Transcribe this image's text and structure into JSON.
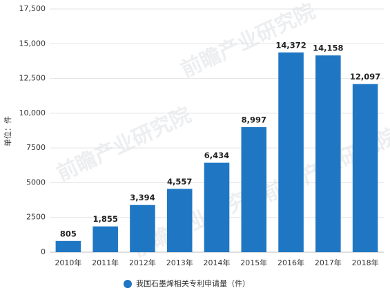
{
  "chart_data": {
    "type": "bar",
    "y_label": "单位：件",
    "legend_label": "我国石墨烯相关专利申请量（件）",
    "watermark": "前瞻产业研究院",
    "categories": [
      "2010年",
      "2011年",
      "2012年",
      "2013年",
      "2014年",
      "2015年",
      "2016年",
      "2017年",
      "2018年"
    ],
    "values": [
      805,
      1855,
      3394,
      4557,
      6434,
      8997,
      14372,
      14158,
      12097
    ],
    "value_labels": [
      "805",
      "1,855",
      "3,394",
      "4,557",
      "6,434",
      "8,997",
      "14,372",
      "14,158",
      "12,097"
    ],
    "color": "#1f77c4",
    "ylim": [
      0,
      17500
    ],
    "yticks": [
      0,
      2500,
      5000,
      7500,
      {
        "value": 10000,
        "label": "10,000"
      },
      {
        "value": 12500,
        "label": "12,500"
      },
      {
        "value": 15000,
        "label": "15,000"
      },
      {
        "value": 17500,
        "label": "17,500"
      }
    ],
    "grid": true
  }
}
